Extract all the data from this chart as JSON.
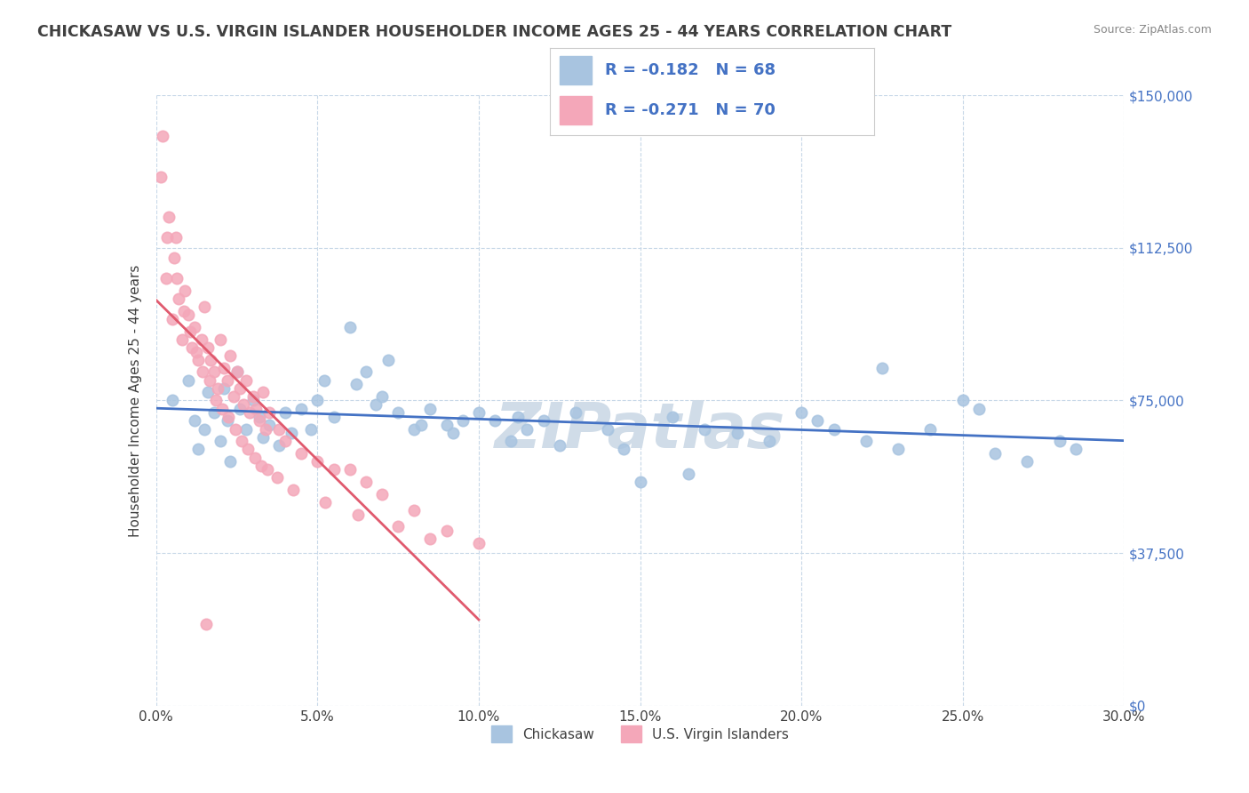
{
  "title": "CHICKASAW VS U.S. VIRGIN ISLANDER HOUSEHOLDER INCOME AGES 25 - 44 YEARS CORRELATION CHART",
  "source_text": "Source: ZipAtlas.com",
  "xlabel_vals": [
    0.0,
    5.0,
    10.0,
    15.0,
    20.0,
    25.0,
    30.0
  ],
  "ylabel_ticks": [
    "$0",
    "$37,500",
    "$75,000",
    "$112,500",
    "$150,000"
  ],
  "ylabel_vals": [
    0,
    37500,
    75000,
    112500,
    150000
  ],
  "xlim": [
    0.0,
    30.0
  ],
  "ylim": [
    0,
    150000
  ],
  "ylabel": "Householder Income Ages 25 - 44 years",
  "legend_labels": [
    "Chickasaw",
    "U.S. Virgin Islanders"
  ],
  "chickasaw_color": "#a8c4e0",
  "virgin_color": "#f4a7b9",
  "chickasaw_line_color": "#4472c4",
  "virgin_line_color": "#e05a6e",
  "watermark": "ZIPatlas",
  "watermark_color": "#d0dce8",
  "background_color": "#ffffff",
  "title_color": "#404040",
  "axis_label_color": "#404040",
  "tick_color": "#404040",
  "right_tick_color": "#4472c4",
  "grid_color": "#c8d8e8",
  "chickasaw_x": [
    0.5,
    1.0,
    1.2,
    1.5,
    1.8,
    2.0,
    2.1,
    2.3,
    2.5,
    2.6,
    2.8,
    3.0,
    3.2,
    3.5,
    3.8,
    4.0,
    4.2,
    4.5,
    4.8,
    5.0,
    5.5,
    6.0,
    6.2,
    6.5,
    7.0,
    7.5,
    8.0,
    8.5,
    9.0,
    9.5,
    10.0,
    10.5,
    11.0,
    11.5,
    12.0,
    12.5,
    13.0,
    14.0,
    15.0,
    16.0,
    17.0,
    18.0,
    19.0,
    20.0,
    21.0,
    22.0,
    23.0,
    24.0,
    25.0,
    26.0,
    27.0,
    28.0,
    1.3,
    1.6,
    2.2,
    3.3,
    5.2,
    6.8,
    7.2,
    8.2,
    9.2,
    11.2,
    14.5,
    16.5,
    20.5,
    22.5,
    25.5,
    28.5
  ],
  "chickasaw_y": [
    75000,
    80000,
    70000,
    68000,
    72000,
    65000,
    78000,
    60000,
    82000,
    73000,
    68000,
    75000,
    71000,
    69000,
    64000,
    72000,
    67000,
    73000,
    68000,
    75000,
    71000,
    93000,
    79000,
    82000,
    76000,
    72000,
    68000,
    73000,
    69000,
    70000,
    72000,
    70000,
    65000,
    68000,
    70000,
    64000,
    72000,
    68000,
    55000,
    71000,
    68000,
    67000,
    65000,
    72000,
    68000,
    65000,
    63000,
    68000,
    75000,
    62000,
    60000,
    65000,
    63000,
    77000,
    70000,
    66000,
    80000,
    74000,
    85000,
    69000,
    67000,
    71000,
    63000,
    57000,
    70000,
    83000,
    73000,
    63000
  ],
  "virgin_x": [
    0.2,
    0.3,
    0.4,
    0.5,
    0.6,
    0.7,
    0.8,
    0.9,
    1.0,
    1.1,
    1.2,
    1.3,
    1.4,
    1.5,
    1.6,
    1.7,
    1.8,
    1.9,
    2.0,
    2.1,
    2.2,
    2.3,
    2.4,
    2.5,
    2.6,
    2.7,
    2.8,
    2.9,
    3.0,
    3.1,
    3.2,
    3.3,
    3.4,
    3.5,
    3.8,
    4.0,
    4.5,
    5.0,
    5.5,
    6.0,
    6.5,
    7.0,
    8.0,
    9.0,
    10.0,
    0.35,
    0.65,
    0.85,
    1.05,
    1.25,
    1.45,
    1.65,
    1.85,
    2.05,
    2.25,
    2.45,
    2.65,
    2.85,
    3.05,
    3.25,
    3.45,
    3.75,
    4.25,
    5.25,
    6.25,
    7.5,
    8.5,
    0.15,
    0.55,
    1.55
  ],
  "virgin_y": [
    140000,
    105000,
    120000,
    95000,
    115000,
    100000,
    90000,
    102000,
    96000,
    88000,
    93000,
    85000,
    90000,
    98000,
    88000,
    85000,
    82000,
    78000,
    90000,
    83000,
    80000,
    86000,
    76000,
    82000,
    78000,
    74000,
    80000,
    72000,
    76000,
    73000,
    70000,
    77000,
    68000,
    72000,
    68000,
    65000,
    62000,
    60000,
    58000,
    58000,
    55000,
    52000,
    48000,
    43000,
    40000,
    115000,
    105000,
    97000,
    92000,
    87000,
    82000,
    80000,
    75000,
    73000,
    71000,
    68000,
    65000,
    63000,
    61000,
    59000,
    58000,
    56000,
    53000,
    50000,
    47000,
    44000,
    41000,
    130000,
    110000,
    20000
  ]
}
